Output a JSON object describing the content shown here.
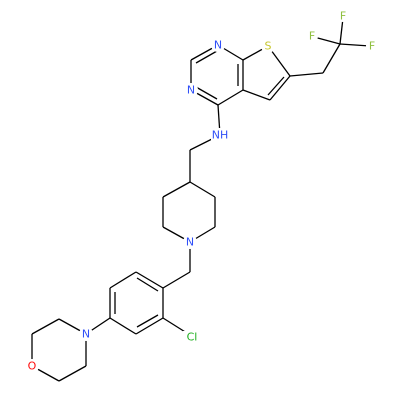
{
  "atoms": [
    "N",
    "N",
    "S",
    "F",
    "F",
    "F",
    "NH",
    "N",
    "Cl",
    "N",
    "O"
  ]
}
